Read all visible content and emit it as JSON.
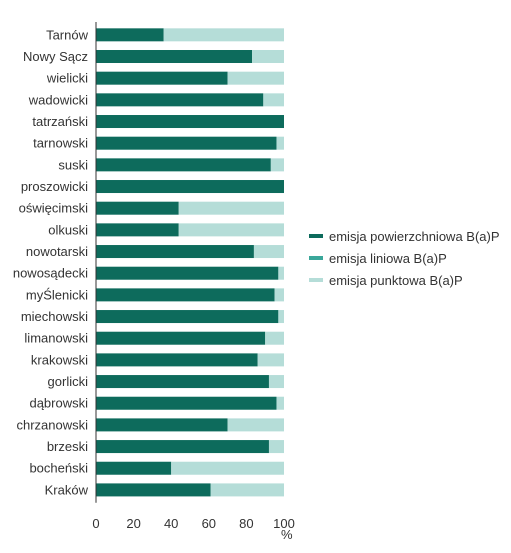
{
  "chart_data": {
    "type": "bar",
    "orientation": "horizontal",
    "stacked": true,
    "categories": [
      "Tarnów",
      "Nowy Sącz",
      "wielicki",
      "wadowicki",
      "tatrzański",
      "tarnowski",
      "suski",
      "proszowicki",
      "oświęcimski",
      "olkuski",
      "nowotarski",
      "nowosądecki",
      "myŚlenicki",
      "miechowski",
      "limanowski",
      "krakowski",
      "gorlicki",
      "dąbrowski",
      "chrzanowski",
      "brzeski",
      "bocheński",
      "Kraków"
    ],
    "series": [
      {
        "name": "emisja powierzchniowa B(a)P",
        "color": "#0d6b5c",
        "values": [
          36,
          83,
          70,
          89,
          100,
          96,
          93,
          100,
          44,
          44,
          84,
          97,
          95,
          97,
          90,
          86,
          92,
          96,
          70,
          92,
          40,
          61
        ]
      },
      {
        "name": "emisja liniowa B(a)P",
        "color": "#3aa79a",
        "values": [
          0,
          0,
          0,
          0,
          0,
          0,
          0,
          0,
          0,
          0,
          0,
          0,
          0,
          0,
          0,
          0,
          0,
          0,
          0,
          0,
          0,
          0
        ]
      },
      {
        "name": "emisja punktowa B(a)P",
        "color": "#b5ddd8",
        "values": [
          64,
          17,
          30,
          11,
          0,
          4,
          7,
          0,
          56,
          56,
          16,
          3,
          5,
          3,
          10,
          14,
          8,
          4,
          30,
          8,
          60,
          39
        ]
      }
    ],
    "xlim": [
      0,
      100
    ],
    "xticks": [
      0,
      20,
      40,
      60,
      80,
      100
    ],
    "xlabel": "%",
    "legend_position": "right",
    "grid": false
  }
}
